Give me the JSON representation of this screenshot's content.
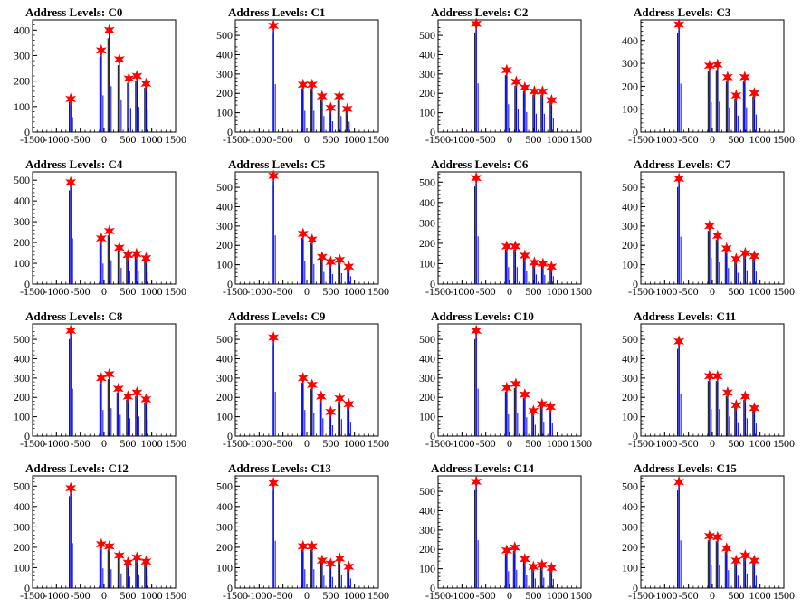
{
  "page": {
    "background": "#ffffff"
  },
  "colors": {
    "histogram_black": "#000000",
    "histogram_blue": "#0000ff",
    "marker_fill": "#ff0000",
    "marker_stroke": "#ff0000"
  },
  "chart_data": [
    {
      "type": "bar",
      "title": "Address Levels: C0",
      "xlim": [
        -1500,
        1500
      ],
      "ylim": [
        0,
        440
      ],
      "yticks": [
        0,
        100,
        200,
        300,
        400
      ],
      "xticks": [
        -1500,
        -1000,
        -500,
        0,
        500,
        1000,
        1500
      ],
      "peaks": [
        {
          "x": -700,
          "y": 130
        },
        {
          "x": -60,
          "y": 320
        },
        {
          "x": 110,
          "y": 400
        },
        {
          "x": 320,
          "y": 285
        },
        {
          "x": 520,
          "y": 210
        },
        {
          "x": 690,
          "y": 220
        },
        {
          "x": 880,
          "y": 190
        }
      ]
    },
    {
      "type": "bar",
      "title": "Address Levels: C1",
      "xlim": [
        -1500,
        1500
      ],
      "ylim": [
        0,
        580
      ],
      "yticks": [
        0,
        100,
        200,
        300,
        400,
        500
      ],
      "xticks": [
        -1500,
        -1000,
        -500,
        0,
        500,
        1000,
        1500
      ],
      "peaks": [
        {
          "x": -700,
          "y": 550
        },
        {
          "x": -80,
          "y": 245
        },
        {
          "x": 110,
          "y": 245
        },
        {
          "x": 320,
          "y": 185
        },
        {
          "x": 500,
          "y": 125
        },
        {
          "x": 680,
          "y": 185
        },
        {
          "x": 850,
          "y": 120
        }
      ]
    },
    {
      "type": "bar",
      "title": "Address Levels: C2",
      "xlim": [
        -1500,
        1500
      ],
      "ylim": [
        0,
        580
      ],
      "yticks": [
        0,
        100,
        200,
        300,
        400,
        500
      ],
      "xticks": [
        -1500,
        -1000,
        -500,
        0,
        500,
        1000,
        1500
      ],
      "peaks": [
        {
          "x": -700,
          "y": 560
        },
        {
          "x": -60,
          "y": 320
        },
        {
          "x": 140,
          "y": 260
        },
        {
          "x": 320,
          "y": 230
        },
        {
          "x": 520,
          "y": 210
        },
        {
          "x": 690,
          "y": 210
        },
        {
          "x": 880,
          "y": 165
        }
      ]
    },
    {
      "type": "bar",
      "title": "Address Levels: C3",
      "xlim": [
        -1500,
        1500
      ],
      "ylim": [
        0,
        490
      ],
      "yticks": [
        0,
        100,
        200,
        300,
        400
      ],
      "xticks": [
        -1500,
        -1000,
        -500,
        0,
        500,
        1000,
        1500
      ],
      "peaks": [
        {
          "x": -700,
          "y": 470
        },
        {
          "x": -60,
          "y": 290
        },
        {
          "x": 110,
          "y": 295
        },
        {
          "x": 320,
          "y": 240
        },
        {
          "x": 500,
          "y": 160
        },
        {
          "x": 680,
          "y": 240
        },
        {
          "x": 880,
          "y": 170
        }
      ]
    },
    {
      "type": "bar",
      "title": "Address Levels: C4",
      "xlim": [
        -1500,
        1500
      ],
      "ylim": [
        0,
        540
      ],
      "yticks": [
        0,
        100,
        200,
        300,
        400,
        500
      ],
      "xticks": [
        -1500,
        -1000,
        -500,
        0,
        500,
        1000,
        1500
      ],
      "peaks": [
        {
          "x": -700,
          "y": 490
        },
        {
          "x": -60,
          "y": 220
        },
        {
          "x": 110,
          "y": 255
        },
        {
          "x": 320,
          "y": 175
        },
        {
          "x": 500,
          "y": 140
        },
        {
          "x": 680,
          "y": 145
        },
        {
          "x": 880,
          "y": 125
        }
      ]
    },
    {
      "type": "bar",
      "title": "Address Levels: C5",
      "xlim": [
        -1500,
        1500
      ],
      "ylim": [
        0,
        580
      ],
      "yticks": [
        0,
        100,
        200,
        300,
        400,
        500
      ],
      "xticks": [
        -1500,
        -1000,
        -500,
        0,
        500,
        1000,
        1500
      ],
      "peaks": [
        {
          "x": -700,
          "y": 560
        },
        {
          "x": -80,
          "y": 260
        },
        {
          "x": 110,
          "y": 230
        },
        {
          "x": 320,
          "y": 140
        },
        {
          "x": 500,
          "y": 115
        },
        {
          "x": 690,
          "y": 125
        },
        {
          "x": 880,
          "y": 90
        }
      ]
    },
    {
      "type": "bar",
      "title": "Address Levels: C6",
      "xlim": [
        -1500,
        1500
      ],
      "ylim": [
        0,
        550
      ],
      "yticks": [
        0,
        100,
        200,
        300,
        400,
        500
      ],
      "xticks": [
        -1500,
        -1000,
        -500,
        0,
        500,
        1000,
        1500
      ],
      "peaks": [
        {
          "x": -700,
          "y": 520
        },
        {
          "x": -60,
          "y": 185
        },
        {
          "x": 120,
          "y": 185
        },
        {
          "x": 320,
          "y": 140
        },
        {
          "x": 520,
          "y": 105
        },
        {
          "x": 700,
          "y": 100
        },
        {
          "x": 880,
          "y": 85
        }
      ]
    },
    {
      "type": "bar",
      "title": "Address Levels: C7",
      "xlim": [
        -1500,
        1500
      ],
      "ylim": [
        0,
        580
      ],
      "yticks": [
        0,
        100,
        200,
        300,
        400,
        500
      ],
      "xticks": [
        -1500,
        -1000,
        -500,
        0,
        500,
        1000,
        1500
      ],
      "peaks": [
        {
          "x": -700,
          "y": 545
        },
        {
          "x": -60,
          "y": 300
        },
        {
          "x": 110,
          "y": 250
        },
        {
          "x": 300,
          "y": 185
        },
        {
          "x": 500,
          "y": 130
        },
        {
          "x": 690,
          "y": 160
        },
        {
          "x": 880,
          "y": 145
        }
      ]
    },
    {
      "type": "bar",
      "title": "Address Levels: C8",
      "xlim": [
        -1500,
        1500
      ],
      "ylim": [
        0,
        580
      ],
      "yticks": [
        0,
        100,
        200,
        300,
        400,
        500
      ],
      "xticks": [
        -1500,
        -1000,
        -500,
        0,
        500,
        1000,
        1500
      ],
      "peaks": [
        {
          "x": -700,
          "y": 545
        },
        {
          "x": -60,
          "y": 300
        },
        {
          "x": 110,
          "y": 320
        },
        {
          "x": 300,
          "y": 245
        },
        {
          "x": 500,
          "y": 205
        },
        {
          "x": 690,
          "y": 225
        },
        {
          "x": 880,
          "y": 190
        }
      ]
    },
    {
      "type": "bar",
      "title": "Address Levels: C9",
      "xlim": [
        -1500,
        1500
      ],
      "ylim": [
        0,
        580
      ],
      "yticks": [
        0,
        100,
        200,
        300,
        400,
        500
      ],
      "xticks": [
        -1500,
        -1000,
        -500,
        0,
        500,
        1000,
        1500
      ],
      "peaks": [
        {
          "x": -700,
          "y": 510
        },
        {
          "x": -80,
          "y": 300
        },
        {
          "x": 110,
          "y": 265
        },
        {
          "x": 300,
          "y": 205
        },
        {
          "x": 500,
          "y": 125
        },
        {
          "x": 690,
          "y": 195
        },
        {
          "x": 880,
          "y": 165
        }
      ]
    },
    {
      "type": "bar",
      "title": "Address Levels: C10",
      "xlim": [
        -1500,
        1500
      ],
      "ylim": [
        0,
        580
      ],
      "yticks": [
        0,
        100,
        200,
        300,
        400,
        500
      ],
      "xticks": [
        -1500,
        -1000,
        -500,
        0,
        500,
        1000,
        1500
      ],
      "peaks": [
        {
          "x": -700,
          "y": 545
        },
        {
          "x": -60,
          "y": 250
        },
        {
          "x": 130,
          "y": 270
        },
        {
          "x": 320,
          "y": 215
        },
        {
          "x": 500,
          "y": 130
        },
        {
          "x": 680,
          "y": 165
        },
        {
          "x": 860,
          "y": 150
        }
      ]
    },
    {
      "type": "bar",
      "title": "Address Levels: C11",
      "xlim": [
        -1500,
        1500
      ],
      "ylim": [
        0,
        580
      ],
      "yticks": [
        0,
        100,
        200,
        300,
        400,
        500
      ],
      "xticks": [
        -1500,
        -1000,
        -500,
        0,
        500,
        1000,
        1500
      ],
      "peaks": [
        {
          "x": -700,
          "y": 490
        },
        {
          "x": -60,
          "y": 310
        },
        {
          "x": 110,
          "y": 310
        },
        {
          "x": 320,
          "y": 225
        },
        {
          "x": 500,
          "y": 160
        },
        {
          "x": 690,
          "y": 205
        },
        {
          "x": 880,
          "y": 145
        }
      ]
    },
    {
      "type": "bar",
      "title": "Address Levels: C12",
      "xlim": [
        -1500,
        1500
      ],
      "ylim": [
        0,
        550
      ],
      "yticks": [
        0,
        100,
        200,
        300,
        400,
        500
      ],
      "xticks": [
        -1500,
        -1000,
        -500,
        0,
        500,
        1000,
        1500
      ],
      "peaks": [
        {
          "x": -700,
          "y": 490
        },
        {
          "x": -60,
          "y": 215
        },
        {
          "x": 110,
          "y": 205
        },
        {
          "x": 320,
          "y": 160
        },
        {
          "x": 500,
          "y": 125
        },
        {
          "x": 690,
          "y": 150
        },
        {
          "x": 880,
          "y": 130
        }
      ]
    },
    {
      "type": "bar",
      "title": "Address Levels: C13",
      "xlim": [
        -1500,
        1500
      ],
      "ylim": [
        0,
        550
      ],
      "yticks": [
        0,
        100,
        200,
        300,
        400,
        500
      ],
      "xticks": [
        -1500,
        -1000,
        -500,
        0,
        500,
        1000,
        1500
      ],
      "peaks": [
        {
          "x": -700,
          "y": 515
        },
        {
          "x": -80,
          "y": 205
        },
        {
          "x": 110,
          "y": 205
        },
        {
          "x": 320,
          "y": 135
        },
        {
          "x": 500,
          "y": 120
        },
        {
          "x": 690,
          "y": 145
        },
        {
          "x": 880,
          "y": 105
        }
      ]
    },
    {
      "type": "bar",
      "title": "Address Levels: C14",
      "xlim": [
        -1500,
        1500
      ],
      "ylim": [
        0,
        580
      ],
      "yticks": [
        0,
        100,
        200,
        300,
        400,
        500
      ],
      "xticks": [
        -1500,
        -1000,
        -500,
        0,
        500,
        1000,
        1500
      ],
      "peaks": [
        {
          "x": -700,
          "y": 550
        },
        {
          "x": -60,
          "y": 195
        },
        {
          "x": 110,
          "y": 210
        },
        {
          "x": 320,
          "y": 150
        },
        {
          "x": 500,
          "y": 110
        },
        {
          "x": 680,
          "y": 120
        },
        {
          "x": 880,
          "y": 105
        }
      ]
    },
    {
      "type": "bar",
      "title": "Address Levels: C15",
      "xlim": [
        -1500,
        1500
      ],
      "ylim": [
        0,
        550
      ],
      "yticks": [
        0,
        100,
        200,
        300,
        400,
        500
      ],
      "xticks": [
        -1500,
        -1000,
        -500,
        0,
        500,
        1000,
        1500
      ],
      "peaks": [
        {
          "x": -700,
          "y": 520
        },
        {
          "x": -60,
          "y": 255
        },
        {
          "x": 110,
          "y": 250
        },
        {
          "x": 300,
          "y": 195
        },
        {
          "x": 500,
          "y": 135
        },
        {
          "x": 690,
          "y": 160
        },
        {
          "x": 880,
          "y": 135
        }
      ]
    }
  ]
}
